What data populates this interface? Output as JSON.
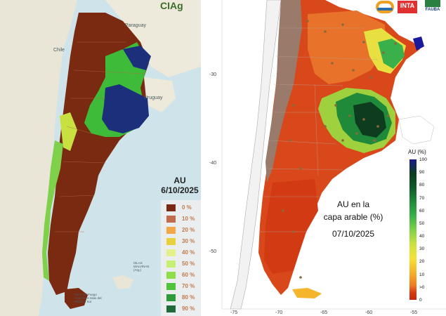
{
  "left_map": {
    "logo_text": "CIAg",
    "countries": {
      "chile": "Chile",
      "paraguay": "Paraguay",
      "uruguay": "Uruguay"
    },
    "small_labels": {
      "malvinas": "ISLAS MALVINAS (Arg.)",
      "tierra_del_fuego": "Tierra del Fuego Antártida e Islas del Atlántico Sur"
    },
    "legend": {
      "title": "AU",
      "date": "6/10/2025",
      "items": [
        {
          "label": "0 %",
          "color": "#7a2a10"
        },
        {
          "label": "10 %",
          "color": "#c26a4a"
        },
        {
          "label": "20 %",
          "color": "#f2a84a"
        },
        {
          "label": "30 %",
          "color": "#e8d040"
        },
        {
          "label": "40 %",
          "color": "#e6ef8a"
        },
        {
          "label": "50 %",
          "color": "#c8f070"
        },
        {
          "label": "60 %",
          "color": "#8fdd4a"
        },
        {
          "label": "70 %",
          "color": "#4fc43a"
        },
        {
          "label": "80 %",
          "color": "#2f9a3a"
        },
        {
          "label": "90 %",
          "color": "#1e6a3a"
        }
      ]
    }
  },
  "right_map": {
    "title_lines": [
      "AU en la",
      "capa arable (%)"
    ],
    "date": "07/10/2025",
    "y_ticks": [
      "-30",
      "-40",
      "-50"
    ],
    "x_ticks": [
      "-75",
      "-70",
      "-65",
      "-60",
      "-55"
    ],
    "colorbar": {
      "title": "AU (%)",
      "ticks": [
        "100",
        "90",
        "80",
        "70",
        "60",
        "50",
        "40",
        "30",
        "20",
        "10",
        ">0",
        "0"
      ]
    },
    "logos": {
      "inta": "INTA",
      "fauba": "FAUBA"
    }
  }
}
